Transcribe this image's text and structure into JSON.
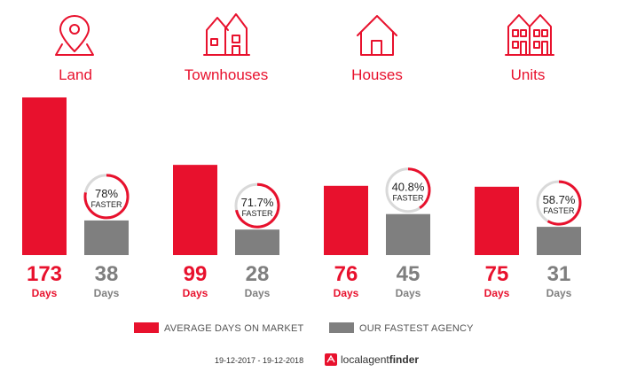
{
  "chart_data": {
    "type": "bar",
    "categories": [
      "Land",
      "Townhouses",
      "Houses",
      "Units"
    ],
    "series": [
      {
        "name": "AVERAGE DAYS ON MARKET",
        "values": [
          173,
          99,
          76,
          75
        ]
      },
      {
        "name": "OUR FASTEST AGENCY",
        "values": [
          38,
          28,
          45,
          31
        ]
      }
    ],
    "faster": [
      "78%",
      "71.7%",
      "40.8%",
      "58.7%"
    ],
    "faster_fraction": [
      0.78,
      0.717,
      0.408,
      0.587
    ],
    "faster_label": "FASTER",
    "unit_label": "Days",
    "ylim": [
      0,
      173
    ],
    "legend_position": "bottom",
    "colors": {
      "market": "#e8112d",
      "agency": "#7f7f7f",
      "ring_bg": "#d9d9d9"
    },
    "icons": [
      "map-pin-icon",
      "townhouses-icon",
      "house-icon",
      "units-icon"
    ]
  },
  "footer": {
    "date_range": "19-12-2017 - 19-12-2018",
    "brand_part1": "localagent",
    "brand_part2": "finder",
    "brand_logo": "localagentfinder-logo-icon"
  }
}
